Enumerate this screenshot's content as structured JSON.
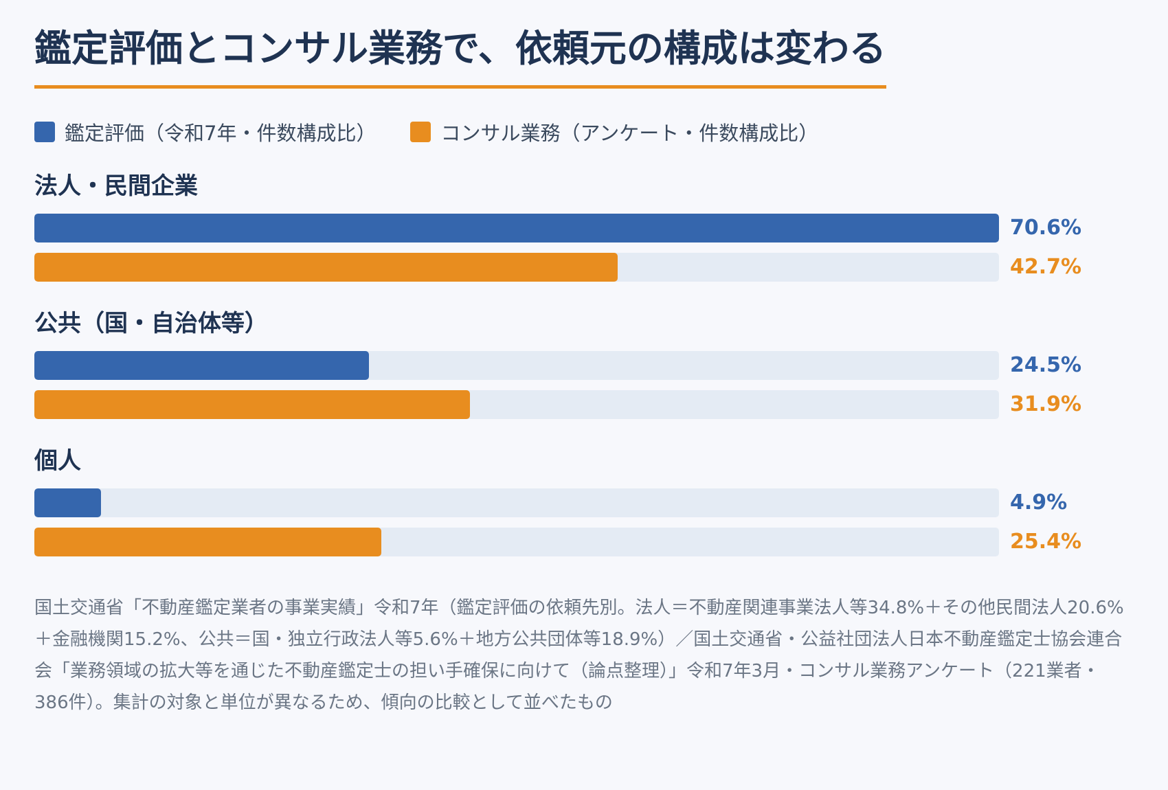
{
  "title": "鑑定評価とコンサル業務で、依頼元の構成は変わる",
  "colors": {
    "series1": "#3566ad",
    "series2": "#e88d1f",
    "track": "#e4ebf4",
    "title_underline": "#e88d1f"
  },
  "chart_data": {
    "type": "bar",
    "orientation": "horizontal",
    "categories": [
      "法人・民間企業",
      "公共（国・自治体等）",
      "個人"
    ],
    "series": [
      {
        "name": "鑑定評価（令和7年・件数構成比）",
        "values": [
          70.6,
          24.5,
          4.9
        ],
        "labels": [
          "70.6%",
          "24.5%",
          "4.9%"
        ]
      },
      {
        "name": "コンサル業務（アンケート・件数構成比）",
        "values": [
          42.7,
          31.9,
          25.4
        ],
        "labels": [
          "42.7%",
          "31.9%",
          "25.4%"
        ]
      }
    ],
    "xlim": [
      0,
      70.6
    ],
    "grid": false,
    "legend": "top-left"
  },
  "source": "国土交通省「不動産鑑定業者の事業実績」令和7年（鑑定評価の依頼先別。法人＝不動産関連事業法人等34.8%＋その他民間法人20.6%＋金融機関15.2%、公共＝国・独立行政法人等5.6%＋地方公共団体等18.9%）／国土交通省・公益社団法人日本不動産鑑定士協会連合会「業務領域の拡大等を通じた不動産鑑定士の担い手確保に向けて（論点整理）」令和7年3月・コンサル業務アンケート（221業者・386件）。集計の対象と単位が異なるため、傾向の比較として並べたもの"
}
